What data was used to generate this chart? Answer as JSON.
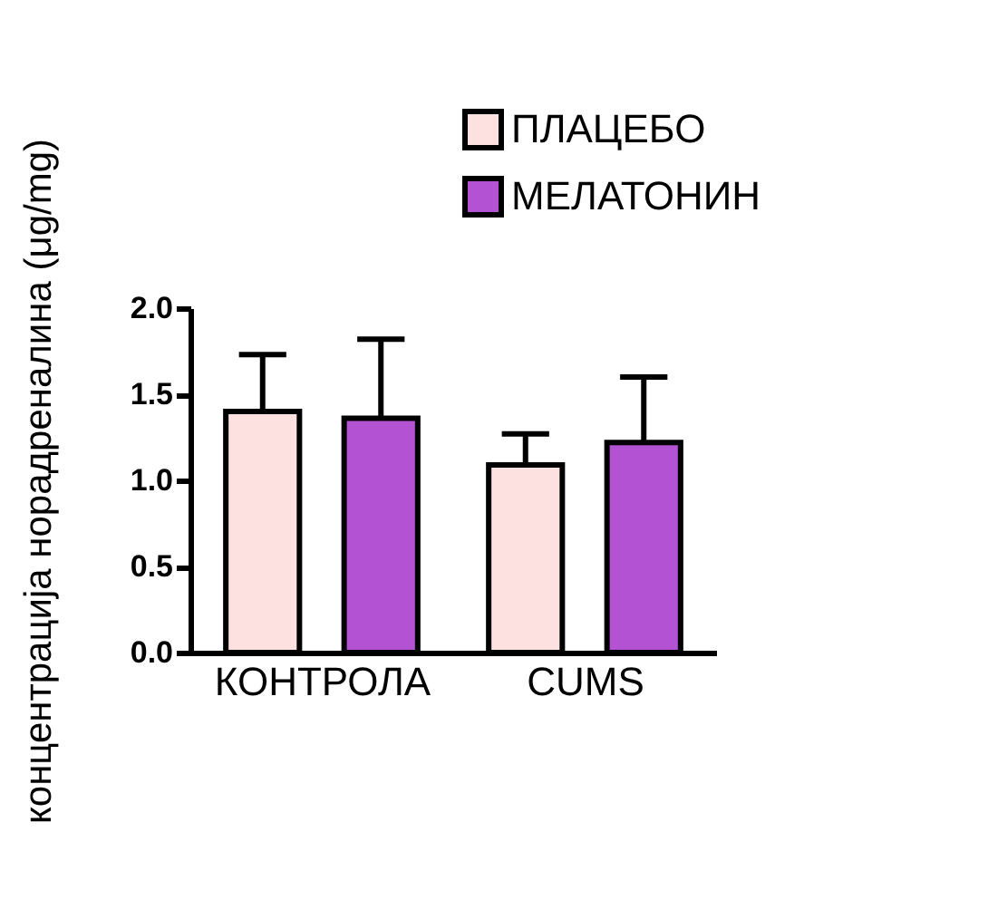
{
  "chart_data": {
    "type": "bar",
    "ylabel": "концентрација норадреналина (μg/mg)",
    "categories": [
      "КОНТРОЛА",
      "CUMS"
    ],
    "series": [
      {
        "name": "ПЛАЦЕБО",
        "color": "#fde0e0",
        "values": [
          1.4,
          1.09
        ],
        "errors": [
          [
            1.4,
            1.73
          ],
          [
            1.09,
            1.27
          ]
        ]
      },
      {
        "name": "МЕЛАТОНИН",
        "color": "#b452d4",
        "values": [
          1.36,
          1.22
        ],
        "errors": [
          [
            1.36,
            1.82
          ],
          [
            1.22,
            1.6
          ]
        ]
      }
    ],
    "ylim": [
      0,
      2.0
    ],
    "yticks": [
      {
        "value": 0,
        "label": "0.0"
      },
      {
        "value": 0.5,
        "label": "0.5"
      },
      {
        "value": 1.0,
        "label": "1.0"
      },
      {
        "value": 1.5,
        "label": "1.5"
      },
      {
        "value": 2.0,
        "label": "2.0"
      }
    ],
    "grid": false,
    "legend": "top right"
  }
}
